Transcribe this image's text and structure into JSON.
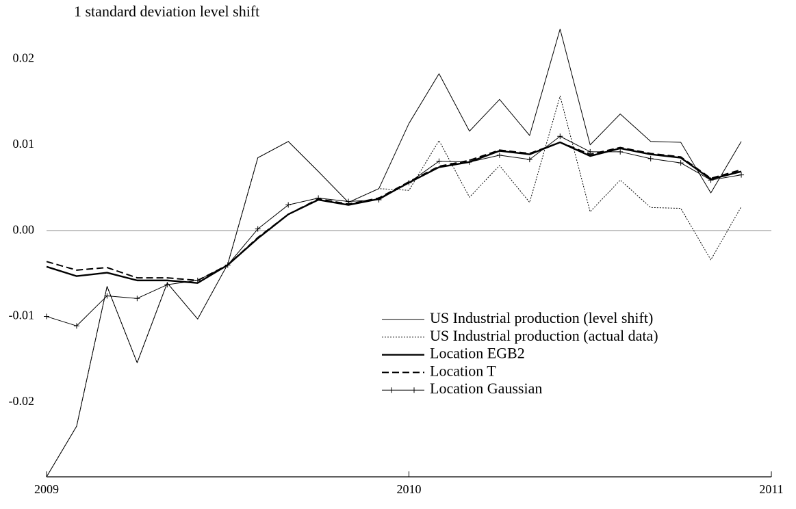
{
  "chart_data": {
    "type": "line",
    "title": "1 standard deviation level shift",
    "x": [
      2009,
      2009.083,
      2009.167,
      2009.25,
      2009.333,
      2009.417,
      2009.5,
      2009.583,
      2009.667,
      2009.75,
      2009.833,
      2009.917,
      2010,
      2010.083,
      2010.167,
      2010.25,
      2010.333,
      2010.417,
      2010.5,
      2010.583,
      2010.667,
      2010.75,
      2010.833,
      2010.917
    ],
    "series": [
      {
        "name": "US Industrial production (level shift)",
        "color": "#000000",
        "style": "thin",
        "values": [
          -0.0287,
          -0.0228,
          -0.0065,
          -0.0154,
          -0.0061,
          -0.0103,
          -0.0039,
          0.0085,
          0.0104,
          0.0069,
          0.0033,
          0.0049,
          0.0125,
          0.0183,
          0.0116,
          0.0153,
          0.0111,
          0.0235,
          0.01,
          0.0136,
          0.0104,
          0.0103,
          0.0044,
          0.0104
        ]
      },
      {
        "name": "US Industrial production (actual data)",
        "color": "#000000",
        "style": "dotted",
        "values": [
          -0.0287,
          -0.0228,
          -0.0065,
          -0.0154,
          -0.0061,
          -0.0103,
          -0.0039,
          0.0085,
          0.0104,
          0.0069,
          0.0033,
          0.0049,
          0.0047,
          0.0105,
          0.0039,
          0.0076,
          0.0033,
          0.0157,
          0.0022,
          0.0059,
          0.0027,
          0.0026,
          -0.0034,
          0.0028
        ]
      },
      {
        "name": "Location EGB2",
        "color": "#000000",
        "style": "thick",
        "values": [
          -0.0042,
          -0.0053,
          -0.0049,
          -0.0058,
          -0.0058,
          -0.0061,
          -0.004,
          -0.0009,
          0.0019,
          0.0036,
          0.003,
          0.0037,
          0.0056,
          0.0074,
          0.008,
          0.0093,
          0.0089,
          0.0103,
          0.0087,
          0.0096,
          0.0089,
          0.0085,
          0.006,
          0.0069
        ]
      },
      {
        "name": "Location T",
        "color": "#000000",
        "style": "dashed",
        "values": [
          -0.0036,
          -0.0046,
          -0.0043,
          -0.0055,
          -0.0055,
          -0.0058,
          -0.004,
          -0.0008,
          0.0019,
          0.0037,
          0.0031,
          0.0038,
          0.0057,
          0.0075,
          0.0082,
          0.0094,
          0.009,
          0.0103,
          0.0089,
          0.0097,
          0.009,
          0.0086,
          0.0061,
          0.0071
        ]
      },
      {
        "name": "Location Gaussian",
        "color": "#000000",
        "style": "marker",
        "values": [
          -0.01,
          -0.0111,
          -0.0076,
          -0.0079,
          -0.0063,
          -0.0058,
          -0.004,
          0.0002,
          0.003,
          0.0038,
          0.0034,
          0.0036,
          0.0056,
          0.0081,
          0.008,
          0.0088,
          0.0083,
          0.011,
          0.0092,
          0.0092,
          0.0084,
          0.0079,
          0.0059,
          0.0065
        ]
      }
    ],
    "xlim": [
      2009,
      2011
    ],
    "xticks": [
      2009,
      2010,
      2011
    ],
    "ylim": [
      -0.0287,
      0.0241
    ],
    "yticks": [
      -0.02,
      -0.01,
      {
        "value": 0,
        "label": "0.00"
      },
      0.01,
      0.02
    ],
    "zero_line": true,
    "legend": "lower right"
  }
}
